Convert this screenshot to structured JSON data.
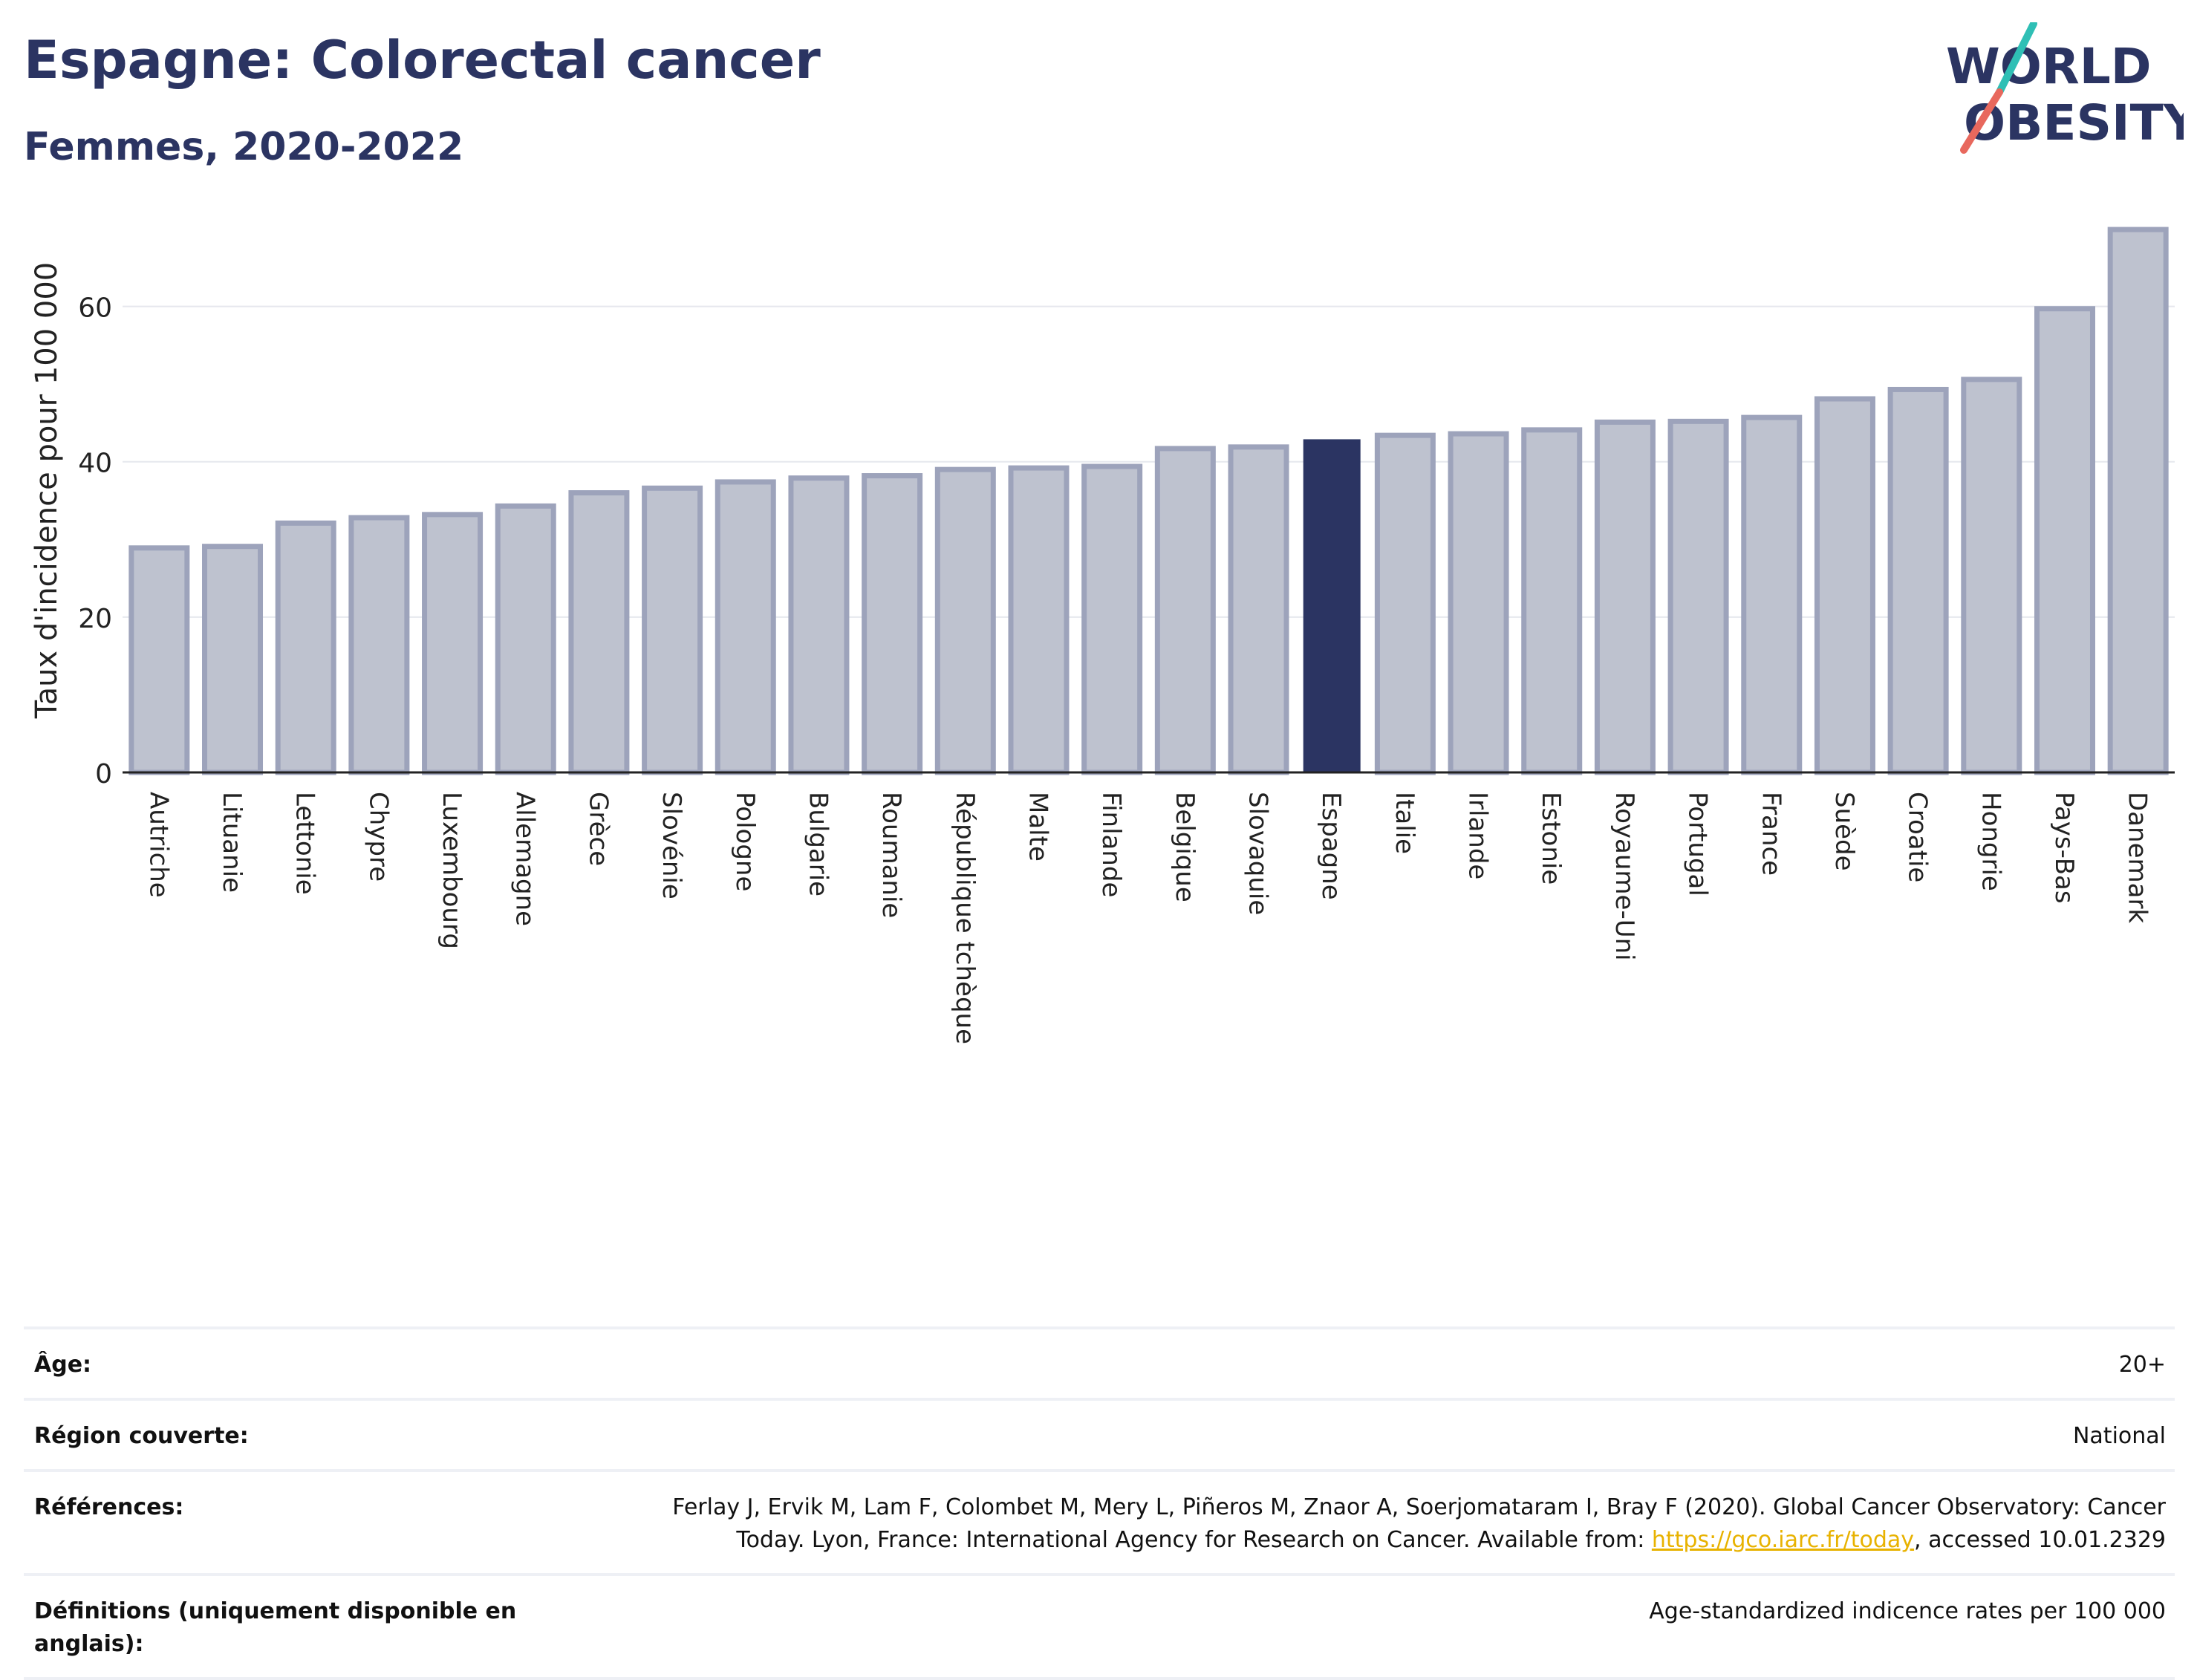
{
  "header": {
    "title": "Espagne: Colorectal cancer",
    "subtitle": "Femmes, 2020-2022",
    "logo_line1": "WORLD",
    "logo_line2": "OBESITY"
  },
  "colors": {
    "highlight": "#2b3462",
    "bar_fill": "#bec2cf",
    "bar_stroke": "#9da3bb",
    "grid": "#e6e8ee"
  },
  "chart_data": {
    "type": "bar",
    "ylabel": "Taux d'incidence pour 100 000",
    "ylim": [
      0,
      70
    ],
    "yticks": [
      0,
      20,
      40,
      60
    ],
    "grid": true,
    "highlight": "Espagne",
    "categories": [
      "Autriche",
      "Lituanie",
      "Lettonie",
      "Chypre",
      "Luxembourg",
      "Allemagne",
      "Grèce",
      "Slovénie",
      "Pologne",
      "Bulgarie",
      "Roumanie",
      "République tchèque",
      "Malte",
      "Finlande",
      "Belgique",
      "Slovaquie",
      "Espagne",
      "Italie",
      "Irlande",
      "Estonie",
      "Royaume-Uni",
      "Portugal",
      "France",
      "Suède",
      "Croatie",
      "Hongrie",
      "Pays-Bas",
      "Danemark"
    ],
    "values": [
      28.9,
      29.1,
      32.1,
      32.8,
      33.2,
      34.3,
      36.0,
      36.6,
      37.4,
      37.9,
      38.2,
      39.0,
      39.2,
      39.4,
      41.7,
      41.9,
      42.8,
      43.4,
      43.6,
      44.1,
      45.1,
      45.2,
      45.7,
      48.1,
      49.3,
      50.6,
      59.7,
      69.9
    ]
  },
  "meta": [
    {
      "label": "Âge:",
      "value": "20+"
    },
    {
      "label": "Région couverte:",
      "value": "National"
    },
    {
      "label": "Références:",
      "value": "Ferlay J, Ervik M, Lam F, Colombet M, Mery L, Piñeros M, Znaor A, Soerjomataram I, Bray F (2020). Global Cancer Observatory: Cancer Today. Lyon, France: International Agency for Research on Cancer. Available from:",
      "link": "https://gco.iarc.fr/today",
      "suffix": ", accessed 10.01.2329"
    },
    {
      "label": "Définitions (uniquement disponible en anglais):",
      "value": "Age-standardized indicence rates per 100 000"
    }
  ]
}
